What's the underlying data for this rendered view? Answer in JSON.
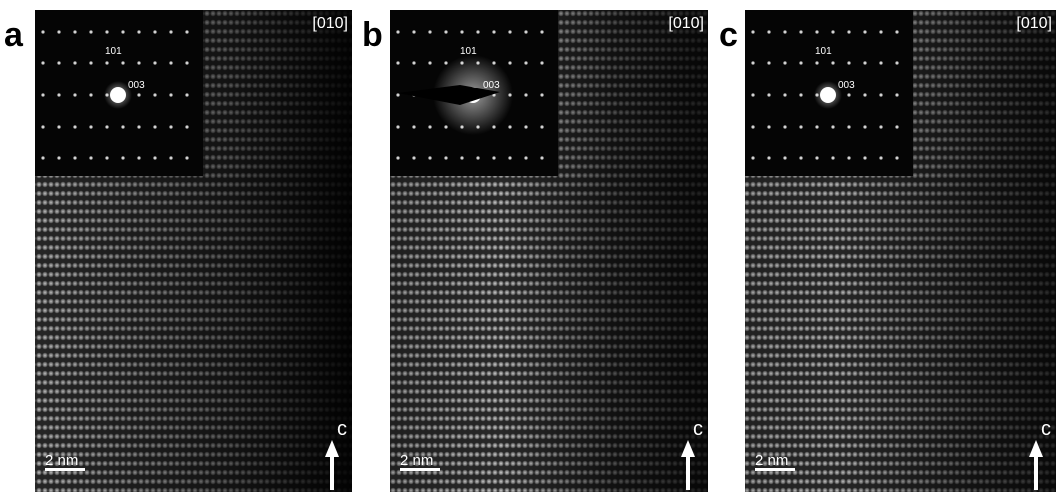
{
  "panels": [
    {
      "label": "a",
      "zone_axis": "[010]",
      "inset_labels": [
        "101",
        "003"
      ],
      "scale_bar": "2 nm",
      "axis_label": "c"
    },
    {
      "label": "b",
      "zone_axis": "[010]",
      "inset_labels": [
        "101",
        "003"
      ],
      "scale_bar": "2 nm",
      "axis_label": "c"
    },
    {
      "label": "c",
      "zone_axis": "[010]",
      "inset_labels": [
        "101",
        "003"
      ],
      "scale_bar": "2 nm",
      "axis_label": "c"
    }
  ]
}
